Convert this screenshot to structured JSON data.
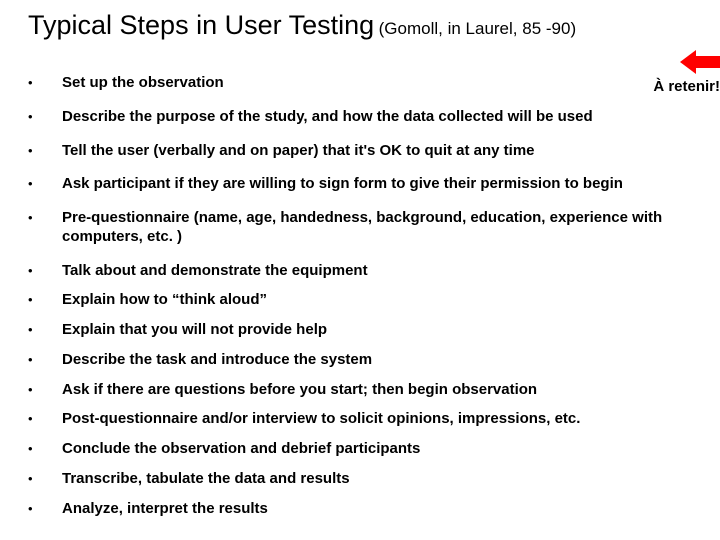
{
  "title": "Typical Steps in User Testing",
  "citation": "(Gomoll, in Laurel, 85 -90)",
  "callout": "À retenir!",
  "arrow_color": "#ff0000",
  "bullet_glyph": "•",
  "items": [
    "Set up the observation",
    "Describe the purpose of the study, and how the data collected will be used",
    "Tell the user (verbally and on paper) that it's OK to quit at any time",
    "Ask participant if they are willing to sign form to give their permission to begin",
    "Pre-questionnaire (name, age, handedness, background, education, experience with computers, etc. )",
    "Talk about and demonstrate the equipment",
    "Explain how to “think aloud”",
    "Explain that you will not provide help",
    "Describe the task and introduce the system",
    "Ask if there are questions before you start; then begin observation",
    "Post-questionnaire and/or interview to solicit opinions, impressions, etc.",
    "Conclude the observation and debrief participants",
    "Transcribe, tabulate the data and results",
    "Analyze, interpret the results"
  ],
  "tight_after_index": 5
}
